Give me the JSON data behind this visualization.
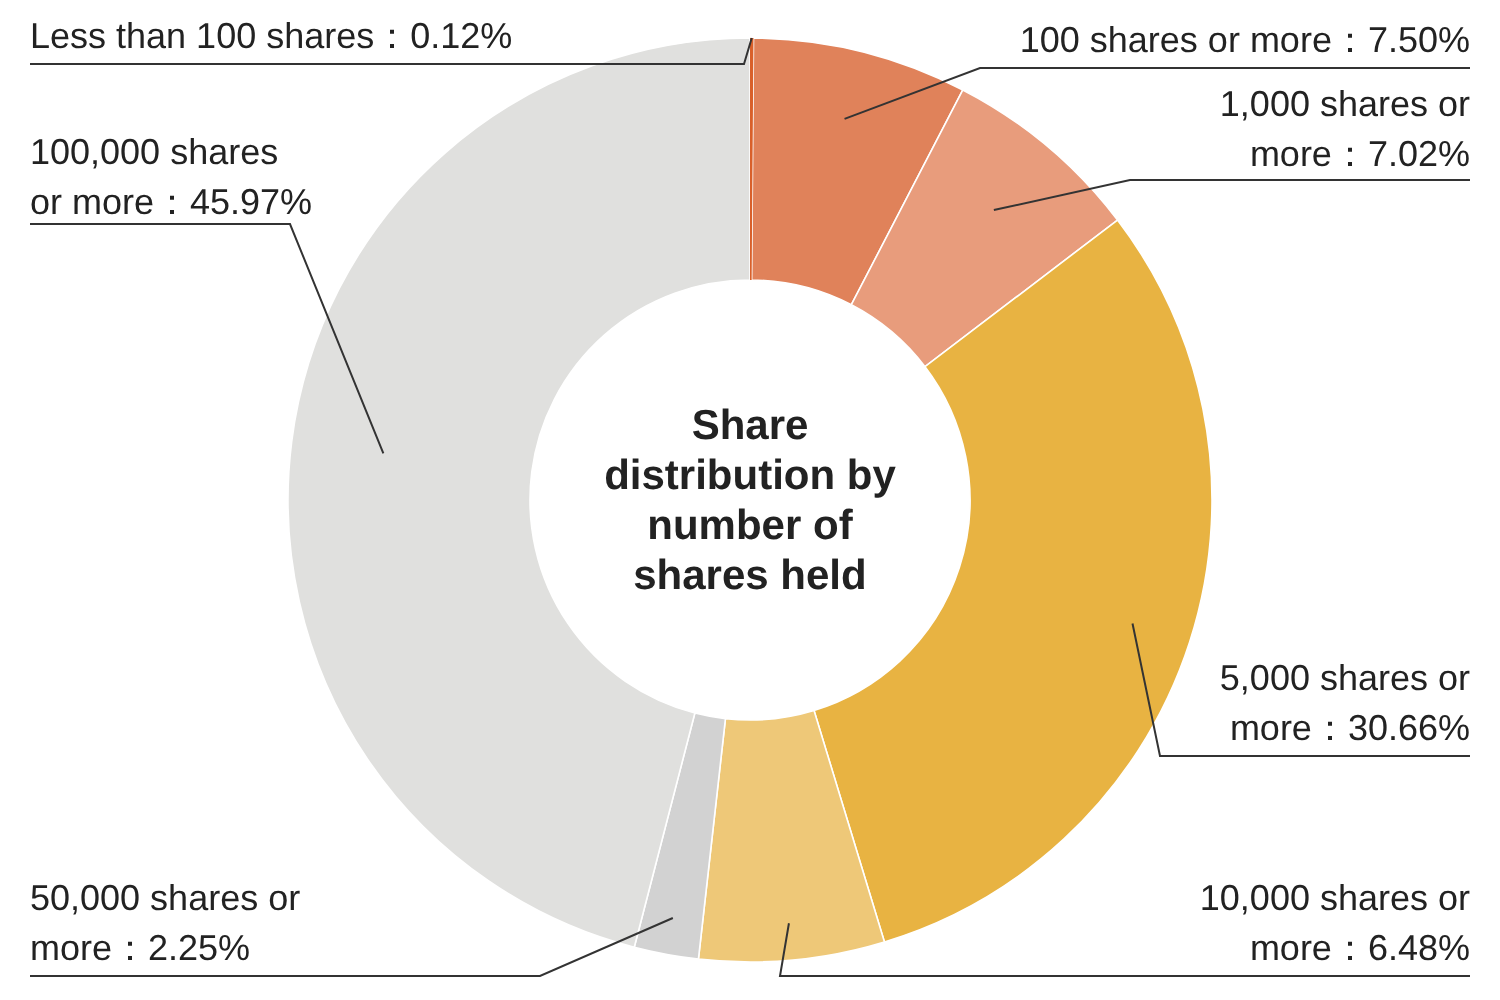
{
  "chart_data": {
    "type": "donut",
    "title": "Share distribution by number of shares held",
    "categories": [
      "Less than 100 shares",
      "100 shares or more",
      "1,000 shares or more",
      "5,000 shares or more",
      "10,000 shares or more",
      "50,000 shares or more",
      "100,000 shares or more"
    ],
    "values": [
      0.12,
      7.5,
      7.02,
      30.66,
      6.48,
      2.25,
      45.97
    ],
    "value_labels": [
      "0.12%",
      "7.50%",
      "7.02%",
      "30.66%",
      "6.48%",
      "2.25%",
      "45.97%"
    ],
    "colors": [
      "#d9602a",
      "#e0825a",
      "#e89c7c",
      "#e8b342",
      "#eec878",
      "#d2d2d2",
      "#e0e0de"
    ]
  }
}
